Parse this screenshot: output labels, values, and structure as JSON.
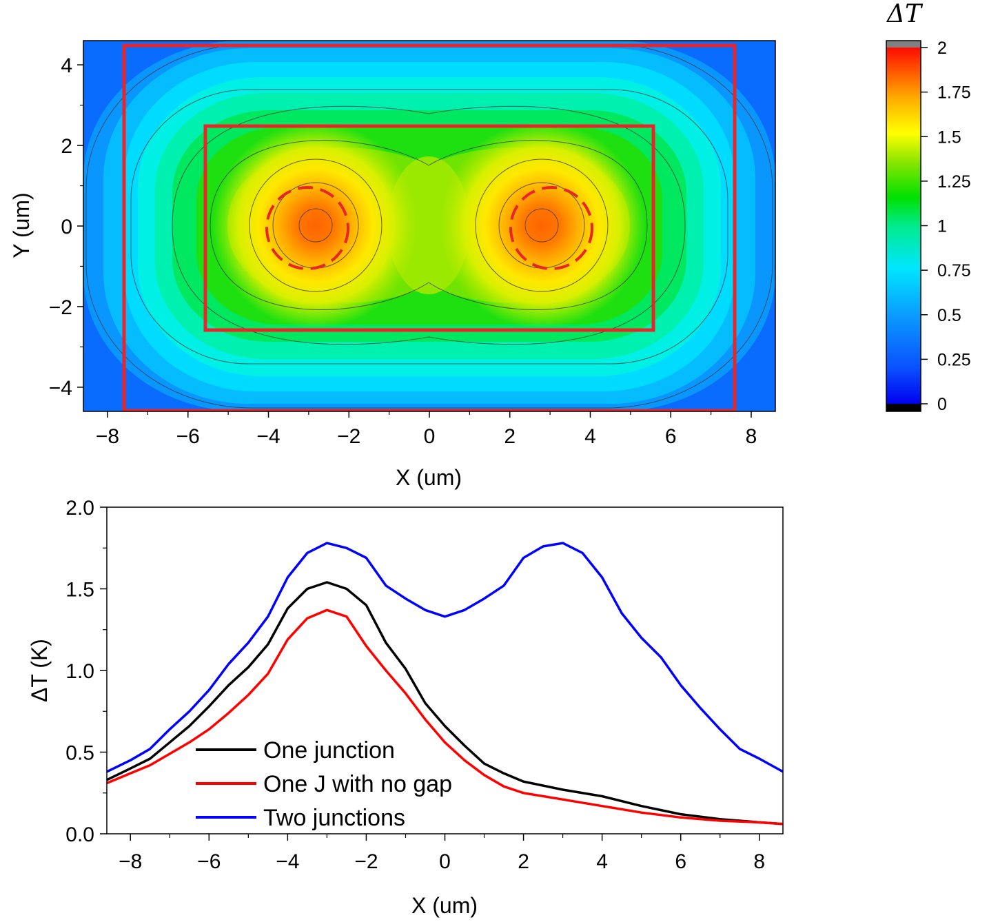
{
  "chart_data": [
    {
      "type": "heatmap",
      "title": "",
      "xlabel": "X (um)",
      "ylabel": "Y (um)",
      "xlim": [
        -8.6,
        8.6
      ],
      "ylim": [
        -4.6,
        4.6
      ],
      "x_ticks": [
        -8,
        -6,
        -4,
        -2,
        0,
        2,
        4,
        6,
        8
      ],
      "x_tick_labels": [
        "−8",
        "−6",
        "−4",
        "−2",
        "0",
        "2",
        "4",
        "6",
        "8"
      ],
      "y_ticks": [
        4,
        2,
        0,
        -2,
        -4
      ],
      "y_tick_labels": [
        "4",
        "2",
        "0",
        "−2",
        "−4"
      ],
      "colorbar": {
        "title": "ΔT",
        "range": [
          0,
          2
        ],
        "ticks": [
          2,
          1.75,
          1.5,
          1.25,
          1,
          0.75,
          0.5,
          0.25,
          0
        ],
        "tick_labels": [
          "2",
          "1.75",
          "1.5",
          "1.25",
          "1",
          "0.75",
          "0.5",
          "0.25",
          "0"
        ],
        "colors": [
          "#000000",
          "#1010ff",
          "#0a64ff",
          "#00c8ff",
          "#00ffd0",
          "#00e000",
          "#7de800",
          "#ffff00",
          "#ffa000",
          "#ff5000",
          "#ff1000",
          "#808080"
        ]
      },
      "hotspots": [
        {
          "x": -2.8,
          "y": 0,
          "peak": 1.78
        },
        {
          "x": 2.8,
          "y": 0,
          "peak": 1.78
        }
      ],
      "rectangles": [
        {
          "x0": -7.6,
          "x1": 7.6,
          "y0": -4.5,
          "y1": 4.5,
          "color": "#e8262a"
        },
        {
          "x0": -5.6,
          "x1": 5.6,
          "y0": -2.6,
          "y1": 2.5,
          "color": "#e8262a"
        }
      ],
      "dashed_circles": [
        {
          "cx": -2.8,
          "cy": 0,
          "r": 1.0,
          "color": "#e8262a"
        },
        {
          "cx": 2.8,
          "cy": 0,
          "r": 1.0,
          "color": "#e8262a"
        }
      ]
    },
    {
      "type": "line",
      "title": "",
      "xlabel": "X (um)",
      "ylabel": "ΔT (K)",
      "xlim": [
        -8.6,
        8.6
      ],
      "ylim": [
        0,
        2
      ],
      "x_ticks": [
        -8,
        -6,
        -4,
        -2,
        0,
        2,
        4,
        6,
        8
      ],
      "x_tick_labels": [
        "−8",
        "−6",
        "−4",
        "−2",
        "0",
        "2",
        "4",
        "6",
        "8"
      ],
      "y_ticks": [
        0,
        0.5,
        1,
        1.5,
        2
      ],
      "y_tick_labels": [
        "0.0",
        "0.5",
        "1.0",
        "1.5",
        "2.0"
      ],
      "legend_position": "bottom-left",
      "series": [
        {
          "name": "One junction",
          "color": "#000000",
          "x": [
            -8.6,
            -8.0,
            -7.5,
            -7.0,
            -6.5,
            -6.0,
            -5.5,
            -5.0,
            -4.5,
            -4.0,
            -3.5,
            -3.0,
            -2.5,
            -2.0,
            -1.5,
            -1.0,
            -0.5,
            0.0,
            0.5,
            1.0,
            1.5,
            2.0,
            3.0,
            4.0,
            5.0,
            6.0,
            7.0,
            8.0,
            8.6
          ],
          "y": [
            0.33,
            0.4,
            0.46,
            0.56,
            0.66,
            0.78,
            0.91,
            1.02,
            1.16,
            1.38,
            1.5,
            1.54,
            1.5,
            1.4,
            1.17,
            1.01,
            0.8,
            0.66,
            0.54,
            0.43,
            0.37,
            0.32,
            0.27,
            0.23,
            0.17,
            0.12,
            0.09,
            0.07,
            0.06
          ]
        },
        {
          "name": "One J with no gap",
          "color": "#ff0000",
          "x": [
            -8.6,
            -8.0,
            -7.5,
            -7.0,
            -6.5,
            -6.0,
            -5.5,
            -5.0,
            -4.5,
            -4.0,
            -3.5,
            -3.0,
            -2.5,
            -2.0,
            -1.5,
            -1.0,
            -0.5,
            0.0,
            0.5,
            1.0,
            1.5,
            2.0,
            3.0,
            4.0,
            5.0,
            6.0,
            7.0,
            8.0,
            8.6
          ],
          "y": [
            0.31,
            0.37,
            0.42,
            0.49,
            0.56,
            0.64,
            0.74,
            0.85,
            0.98,
            1.19,
            1.32,
            1.37,
            1.33,
            1.15,
            1.0,
            0.86,
            0.7,
            0.56,
            0.45,
            0.36,
            0.29,
            0.25,
            0.21,
            0.17,
            0.13,
            0.1,
            0.08,
            0.07,
            0.06
          ]
        },
        {
          "name": "Two junctions",
          "color": "#0000ff",
          "x": [
            -8.6,
            -8.0,
            -7.5,
            -7.0,
            -6.5,
            -6.0,
            -5.5,
            -5.0,
            -4.5,
            -4.0,
            -3.5,
            -3.0,
            -2.5,
            -2.0,
            -1.5,
            -1.0,
            -0.5,
            0.0,
            0.5,
            1.0,
            1.5,
            2.0,
            2.5,
            3.0,
            3.5,
            4.0,
            4.5,
            5.0,
            5.5,
            6.0,
            6.5,
            7.0,
            7.5,
            8.0,
            8.6
          ],
          "y": [
            0.38,
            0.45,
            0.52,
            0.64,
            0.75,
            0.88,
            1.04,
            1.17,
            1.33,
            1.57,
            1.72,
            1.78,
            1.75,
            1.69,
            1.52,
            1.44,
            1.37,
            1.33,
            1.37,
            1.44,
            1.52,
            1.69,
            1.76,
            1.78,
            1.72,
            1.57,
            1.35,
            1.2,
            1.08,
            0.91,
            0.77,
            0.64,
            0.52,
            0.46,
            0.38
          ]
        }
      ]
    }
  ]
}
